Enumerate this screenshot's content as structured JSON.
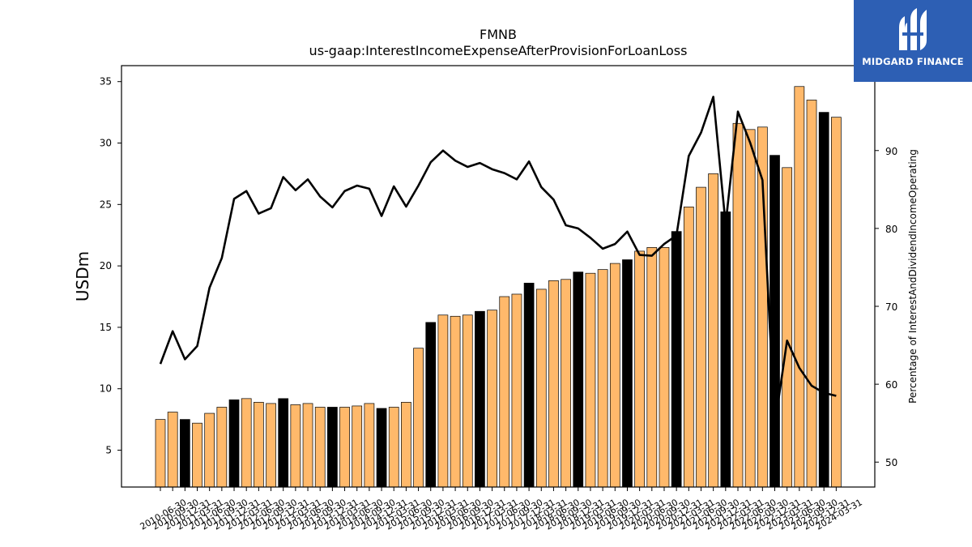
{
  "branding": {
    "logo_text": "MIDGARD FINANCE",
    "logo_bg": "#2d5fb4"
  },
  "chart_data": {
    "type": "bar",
    "title": "FMNB",
    "subtitle": "us-gaap:InterestIncomeExpenseAfterProvisionForLoanLoss",
    "ylabel": "USDm",
    "y2label": "Percentage of InterestAndDividendIncomeOperating",
    "ylim": [
      2.0,
      36.3
    ],
    "y2lim": [
      46.8,
      100.9
    ],
    "yticks": [
      5,
      10,
      15,
      20,
      25,
      30,
      35
    ],
    "y2ticks": [
      50,
      60,
      70,
      80,
      90
    ],
    "grid": false,
    "colors": {
      "bar_default": "#ffb96b",
      "bar_highlight": "#000000",
      "bar_edge": "#000000",
      "line": "#000000"
    },
    "categories": [
      "2010-06-30",
      "2010-09-30",
      "2010-12-31",
      "2011-03-31",
      "2011-06-30",
      "2011-09-30",
      "2011-12-31",
      "2012-03-31",
      "2012-06-30",
      "2012-09-30",
      "2012-12-31",
      "2013-03-31",
      "2013-06-30",
      "2013-09-30",
      "2013-12-31",
      "2014-03-31",
      "2014-06-30",
      "2014-09-30",
      "2014-12-31",
      "2015-03-31",
      "2015-06-30",
      "2015-09-30",
      "2015-12-31",
      "2016-03-31",
      "2016-06-30",
      "2016-09-30",
      "2016-12-31",
      "2017-03-31",
      "2017-06-30",
      "2017-09-30",
      "2017-12-31",
      "2018-03-31",
      "2018-06-30",
      "2018-09-30",
      "2018-12-31",
      "2019-03-31",
      "2019-06-30",
      "2019-09-30",
      "2019-12-31",
      "2020-03-31",
      "2020-06-30",
      "2020-09-30",
      "2020-12-31",
      "2021-03-31",
      "2021-06-30",
      "2021-09-30",
      "2021-12-31",
      "2022-03-31",
      "2022-06-30",
      "2022-09-30",
      "2022-12-31",
      "2023-03-31",
      "2023-06-30",
      "2023-09-30",
      "2023-12-31",
      "2024-03-31"
    ],
    "series": [
      {
        "kind": "bar",
        "axis": "left",
        "values": [
          7.5,
          8.1,
          7.5,
          7.2,
          8.0,
          8.5,
          9.1,
          9.2,
          8.9,
          8.8,
          9.2,
          8.7,
          8.8,
          8.5,
          8.5,
          8.5,
          8.6,
          8.8,
          8.4,
          8.5,
          8.9,
          13.3,
          15.4,
          16.0,
          15.9,
          16.0,
          16.3,
          16.4,
          17.5,
          17.7,
          18.6,
          18.1,
          18.8,
          18.9,
          19.5,
          19.4,
          19.7,
          20.2,
          20.5,
          21.2,
          21.5,
          21.5,
          22.8,
          24.8,
          26.4,
          27.5,
          24.4,
          31.6,
          31.1,
          31.3,
          29.0,
          28.0,
          34.6,
          33.5,
          32.5,
          32.1
        ],
        "highlight": [
          false,
          false,
          true,
          false,
          false,
          false,
          true,
          false,
          false,
          false,
          true,
          false,
          false,
          false,
          true,
          false,
          false,
          false,
          true,
          false,
          false,
          false,
          true,
          false,
          false,
          false,
          true,
          false,
          false,
          false,
          true,
          false,
          false,
          false,
          true,
          false,
          false,
          false,
          true,
          false,
          false,
          false,
          true,
          false,
          false,
          false,
          true,
          false,
          false,
          false,
          true,
          false,
          false,
          false,
          true,
          false
        ]
      },
      {
        "kind": "line",
        "axis": "right",
        "values": [
          62.6,
          66.8,
          63.2,
          64.9,
          72.4,
          76.2,
          83.8,
          84.8,
          81.9,
          82.6,
          86.6,
          84.9,
          86.3,
          84.1,
          82.7,
          84.8,
          85.5,
          85.1,
          81.6,
          85.4,
          82.8,
          85.5,
          88.5,
          90.0,
          88.7,
          87.9,
          88.4,
          87.6,
          87.1,
          86.3,
          88.6,
          85.3,
          83.7,
          80.4,
          80.0,
          78.8,
          77.4,
          78.0,
          79.6,
          76.6,
          76.5,
          78.0,
          79.1,
          89.3,
          92.3,
          96.9,
          80.5,
          95.0,
          91.0,
          86.2,
          54.7,
          65.6,
          62.1,
          59.8,
          58.9,
          58.5
        ]
      }
    ]
  }
}
